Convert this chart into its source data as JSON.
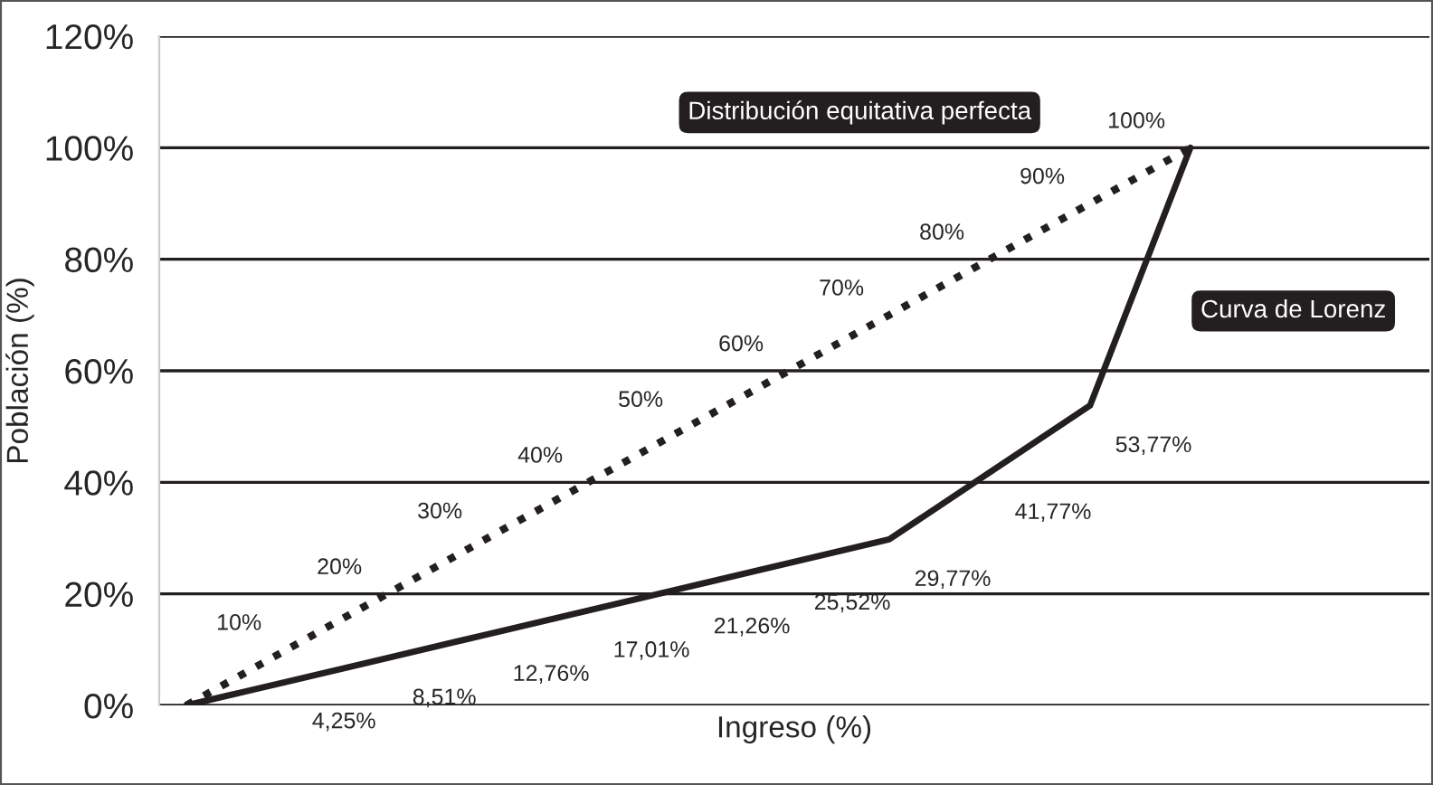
{
  "chart_data": {
    "type": "line",
    "xlabel": "Ingreso (%)",
    "ylabel": "Población (%)",
    "categories": [
      null,
      null,
      null,
      null,
      null,
      null,
      null,
      null,
      null,
      null,
      null
    ],
    "series": [
      {
        "name": "Distribución equitativa perfecta",
        "color": "#231f20",
        "line_style": "dotted",
        "values": [
          0,
          10,
          20,
          30,
          40,
          50,
          60,
          70,
          80,
          90,
          100
        ],
        "value_labels": [
          null,
          "10%",
          "20%",
          "30%",
          "40%",
          "50%",
          "60%",
          "70%",
          "80%",
          "90%",
          "100%"
        ]
      },
      {
        "name": "Curva de Lorenz",
        "color": "#231f20",
        "line_style": "solid",
        "values": [
          0,
          4.25,
          8.51,
          12.76,
          17.01,
          21.26,
          25.52,
          29.77,
          41.77,
          53.77,
          100
        ],
        "value_labels": [
          null,
          "4,25%",
          "8,51%",
          "12,76%",
          "17,01%",
          "21,26%",
          "25,52%",
          "29,77%",
          "41,77%",
          "53,77%",
          null
        ]
      }
    ],
    "ylim": [
      0,
      120
    ],
    "yticks": [
      {
        "value": 0,
        "label": "0%"
      },
      {
        "value": 20,
        "label": "20%"
      },
      {
        "value": 40,
        "label": "40%"
      },
      {
        "value": 60,
        "label": "60%"
      },
      {
        "value": 80,
        "label": "80%"
      },
      {
        "value": 100,
        "label": "100%"
      },
      {
        "value": 120,
        "label": "120%"
      }
    ],
    "grid": "y",
    "legend": false,
    "marker": "none"
  }
}
